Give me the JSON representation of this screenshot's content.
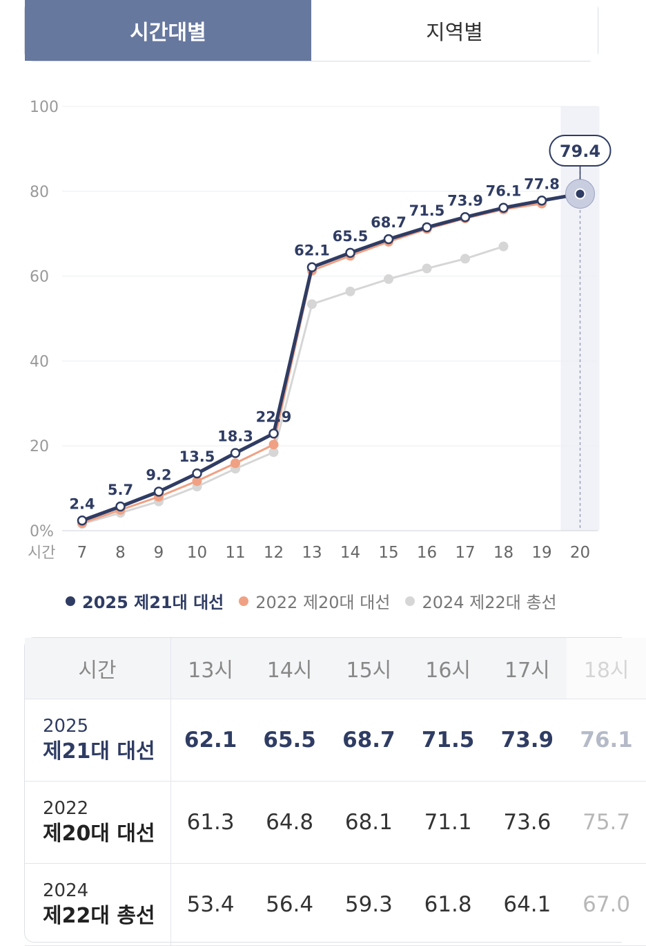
{
  "tabs": [
    {
      "label": "시간대별",
      "active": true
    },
    {
      "label": "지역별",
      "active": false
    }
  ],
  "chart_data": {
    "type": "line",
    "x": [
      7,
      8,
      9,
      10,
      11,
      12,
      13,
      14,
      15,
      16,
      17,
      18,
      19,
      20
    ],
    "x_tick_labels": [
      "7",
      "8",
      "9",
      "10",
      "11",
      "12",
      "13",
      "14",
      "15",
      "16",
      "17",
      "18",
      "19",
      "20"
    ],
    "x_unit_label": "시간",
    "y_tick_labels": [
      "0%",
      "20",
      "40",
      "60",
      "80",
      "100"
    ],
    "ylim": [
      0,
      100
    ],
    "grid": true,
    "highlight_x": 20,
    "highlight_label": "79.4",
    "series": [
      {
        "name": "2025 제21대 대선",
        "color": "#2f3c63",
        "values": [
          2.4,
          5.7,
          9.2,
          13.5,
          18.3,
          22.9,
          62.1,
          65.5,
          68.7,
          71.5,
          73.9,
          76.1,
          77.8,
          79.4
        ],
        "data_labels": [
          "2.4",
          "5.7",
          "9.2",
          "13.5",
          "18.3",
          "22.9",
          "62.1",
          "65.5",
          "68.7",
          "71.5",
          "73.9",
          "76.1",
          "77.8"
        ]
      },
      {
        "name": "2022 제20대 대선",
        "color": "#f0a183",
        "values": [
          1.8,
          4.9,
          8.0,
          11.7,
          15.9,
          20.3,
          61.3,
          64.8,
          68.1,
          71.1,
          73.6,
          75.7,
          77.1,
          null
        ]
      },
      {
        "name": "2024 제22대 총선",
        "color": "#d6d6d6",
        "values": [
          1.6,
          4.2,
          6.9,
          10.4,
          14.6,
          18.5,
          53.4,
          56.4,
          59.3,
          61.8,
          64.1,
          67.0,
          null,
          null
        ]
      }
    ]
  },
  "legend": [
    {
      "label": "2025 제21대 대선",
      "color": "#2f3c63"
    },
    {
      "label": "2022 제20대 대선",
      "color": "#f0a183"
    },
    {
      "label": "2024 제22대 총선",
      "color": "#d6d6d6"
    }
  ],
  "table": {
    "header_label": "시간",
    "columns": [
      "13시",
      "14시",
      "15시",
      "16시",
      "17시",
      "18시"
    ],
    "rows": [
      {
        "year": "2025",
        "name": "제21대 대선",
        "values": [
          "62.1",
          "65.5",
          "68.7",
          "71.5",
          "73.9",
          "76.1"
        ]
      },
      {
        "year": "2022",
        "name": "제20대 대선",
        "values": [
          "61.3",
          "64.8",
          "68.1",
          "71.1",
          "73.6",
          "75.7"
        ]
      },
      {
        "year": "2024",
        "name": "제22대 총선",
        "values": [
          "53.4",
          "56.4",
          "59.3",
          "61.8",
          "64.1",
          "67.0"
        ]
      }
    ]
  }
}
